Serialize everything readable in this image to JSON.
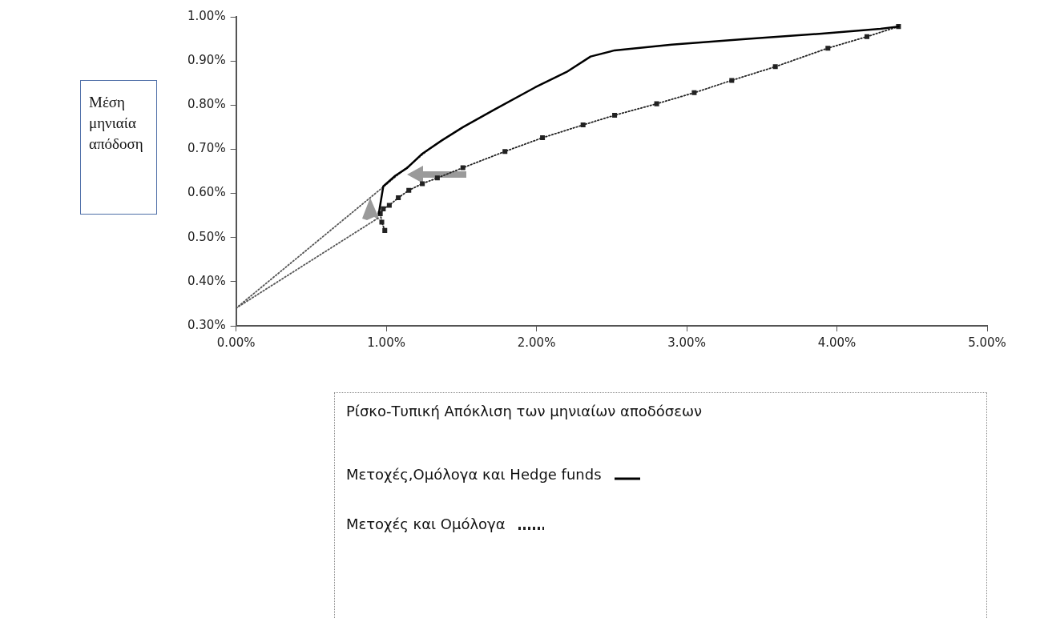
{
  "chart_data": {
    "type": "line",
    "xlabel": "Ρίσκο-Τυπική Απόκλιση των μηνιαίων αποδόσεων",
    "ylabel": "Μέση μηνιαία απόδοση",
    "xlim": [
      0,
      5
    ],
    "ylim": [
      0.3,
      1
    ],
    "xticks": [
      {
        "value": 0,
        "label": "0.00%"
      },
      {
        "value": 1,
        "label": "1.00%"
      },
      {
        "value": 2,
        "label": "2.00%"
      },
      {
        "value": 3,
        "label": "3.00%"
      },
      {
        "value": 4,
        "label": "4.00%"
      },
      {
        "value": 5,
        "label": "5.00%"
      }
    ],
    "yticks": [
      {
        "value": 0.3,
        "label": "0.30%"
      },
      {
        "value": 0.4,
        "label": "0.40%"
      },
      {
        "value": 0.5,
        "label": "0.50%"
      },
      {
        "value": 0.6,
        "label": "0.60%"
      },
      {
        "value": 0.7,
        "label": "0.70%"
      },
      {
        "value": 0.8,
        "label": "0.80%"
      },
      {
        "value": 0.9,
        "label": "0.90%"
      },
      {
        "value": 1,
        "label": "1.00%"
      }
    ],
    "grid": false,
    "legend": "bottom",
    "series": [
      {
        "name": "Μετοχές,Ομόλογα και Hedge funds",
        "type": "line",
        "color": "#000000",
        "line_style": "solid",
        "marker": "none",
        "x": [
          0.95,
          0.98,
          1.06,
          1.14,
          1.24,
          1.37,
          1.51,
          1.72,
          1.99,
          2.2,
          2.36,
          2.52,
          2.9,
          3.41,
          3.9,
          4.29,
          4.41
        ],
        "values": [
          0.554,
          0.616,
          0.64,
          0.658,
          0.69,
          0.72,
          0.75,
          0.79,
          0.84,
          0.875,
          0.91,
          0.924,
          0.937,
          0.95,
          0.962,
          0.973,
          0.978
        ]
      },
      {
        "name": "Μετοχές και Ομόλογα",
        "type": "line",
        "color": "#222222",
        "line_style": "dotted",
        "marker": "square",
        "x": [
          0.99,
          0.97,
          0.96,
          0.98,
          1.02,
          1.08,
          1.15,
          1.24,
          1.34,
          1.51,
          1.79,
          2.04,
          2.31,
          2.52,
          2.8,
          3.05,
          3.3,
          3.59,
          3.94,
          4.2,
          4.41
        ],
        "values": [
          0.516,
          0.535,
          0.554,
          0.565,
          0.573,
          0.59,
          0.607,
          0.622,
          0.635,
          0.658,
          0.695,
          0.726,
          0.755,
          0.777,
          0.803,
          0.828,
          0.856,
          0.887,
          0.929,
          0.955,
          0.978
        ]
      },
      {
        "type": "line",
        "color": "#555555",
        "line_style": "dotted",
        "marker": "none",
        "x": [
          0,
          1.27
        ],
        "values": [
          0.34,
          0.696
        ]
      },
      {
        "type": "line",
        "color": "#555555",
        "line_style": "dotted",
        "marker": "none",
        "x": [
          0,
          0.95
        ],
        "values": [
          0.34,
          0.545
        ]
      }
    ]
  }
}
